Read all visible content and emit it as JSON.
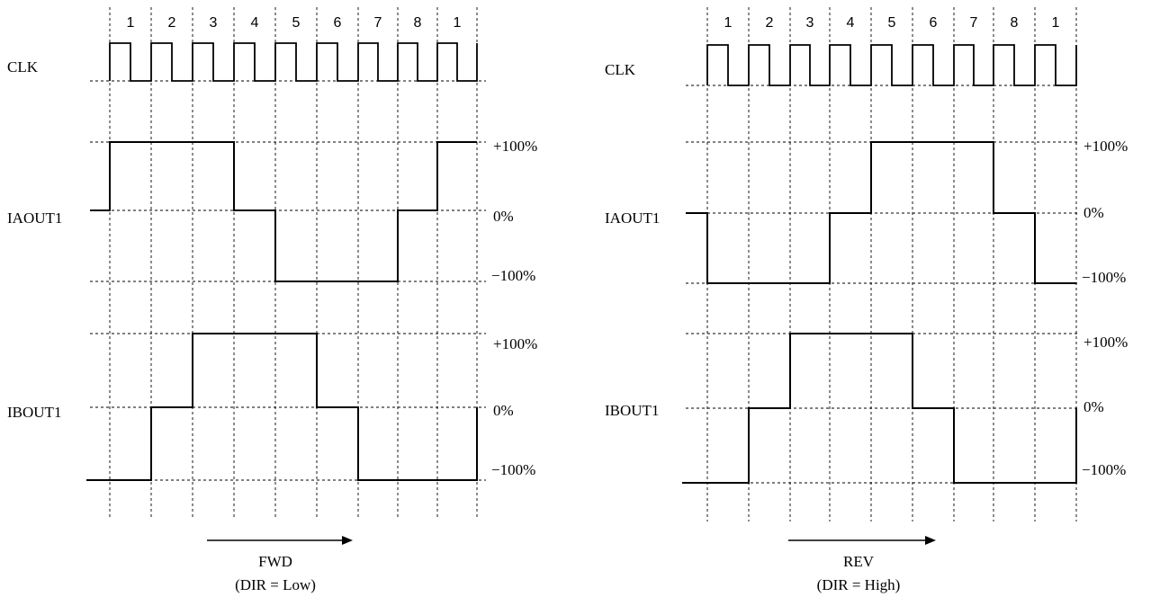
{
  "diagrams": [
    {
      "id": "fwd",
      "step_labels": [
        "1",
        "2",
        "3",
        "4",
        "5",
        "6",
        "7",
        "8",
        "1"
      ],
      "signals": {
        "clk": "CLK",
        "ia": "IAOUT1",
        "ib": "IBOUT1"
      },
      "levels": {
        "pos": "+100%",
        "zero": "0%",
        "neg": "−100%"
      },
      "ia_sequence": [
        1,
        1,
        1,
        0,
        -1,
        -1,
        -1,
        0,
        1
      ],
      "ib_sequence": [
        -1,
        0,
        1,
        1,
        1,
        0,
        -1,
        -1,
        -1
      ],
      "direction": "FWD",
      "condition": "(DIR = Low)"
    },
    {
      "id": "rev",
      "step_labels": [
        "1",
        "2",
        "3",
        "4",
        "5",
        "6",
        "7",
        "8",
        "1"
      ],
      "signals": {
        "clk": "CLK",
        "ia": "IAOUT1",
        "ib": "IBOUT1"
      },
      "levels": {
        "pos": "+100%",
        "zero": "0%",
        "neg": "−100%"
      },
      "ia_sequence": [
        -1,
        -1,
        -1,
        0,
        1,
        1,
        1,
        0,
        -1
      ],
      "ib_sequence": [
        -1,
        0,
        1,
        1,
        1,
        0,
        -1,
        -1,
        -1
      ],
      "direction": "REV",
      "condition": "(DIR = High)"
    }
  ]
}
